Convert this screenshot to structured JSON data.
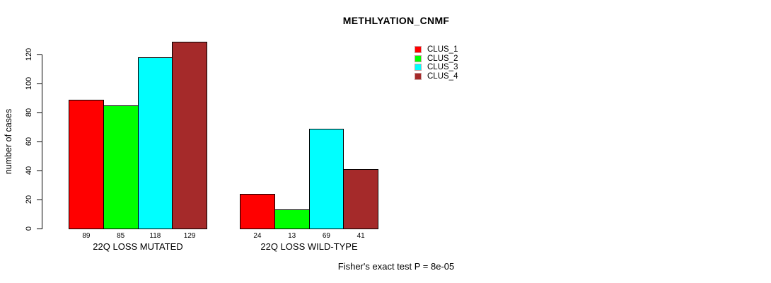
{
  "chart_data": {
    "type": "bar",
    "title": "METHLYATION_CNMF",
    "ylabel": "number of cases",
    "xlabel": "",
    "categories": [
      "22Q LOSS MUTATED",
      "22Q LOSS WILD-TYPE"
    ],
    "series": [
      {
        "name": "CLUS_1",
        "color": "#ff0000",
        "values": [
          89,
          24
        ]
      },
      {
        "name": "CLUS_2",
        "color": "#00ff00",
        "values": [
          85,
          13
        ]
      },
      {
        "name": "CLUS_3",
        "color": "#00ffff",
        "values": [
          118,
          69
        ]
      },
      {
        "name": "CLUS_4",
        "color": "#a52a2a",
        "values": [
          129,
          41
        ]
      }
    ],
    "bar_value_labels": [
      [
        89,
        85,
        118,
        129
      ],
      [
        24,
        13,
        69,
        41
      ]
    ],
    "yticks": [
      0,
      20,
      40,
      60,
      80,
      100,
      120
    ],
    "ylim": [
      0,
      132
    ],
    "grid": false,
    "legend_position": "top-right",
    "legend_entries": [
      "CLUS_1",
      "CLUS_2",
      "CLUS_3",
      "CLUS_4"
    ],
    "annotation": "Fisher's exact test P = 8e-05",
    "colors": {
      "bar_border": "#000000",
      "axis": "#000000",
      "text": "#000000",
      "background": "#ffffff"
    }
  }
}
